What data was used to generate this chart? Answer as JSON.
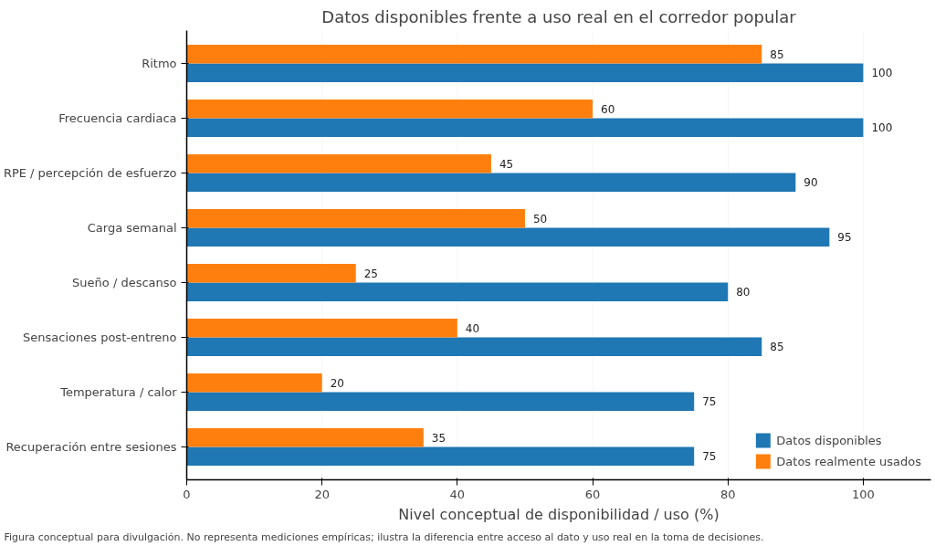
{
  "chart_data": {
    "type": "bar",
    "orientation": "horizontal",
    "title": "Datos disponibles frente a uso real en el corredor popular",
    "xlabel": "Nivel conceptual de disponibilidad / uso (%)",
    "categories": [
      "Ritmo",
      "Frecuencia cardiaca",
      "RPE / percepción de esfuerzo",
      "Carga semanal",
      "Sueño / descanso",
      "Sensaciones post-entreno",
      "Temperatura / calor",
      "Recuperación entre sesiones"
    ],
    "series": [
      {
        "name": "Datos disponibles",
        "color": "#1f77b4",
        "values": [
          100,
          100,
          90,
          95,
          80,
          85,
          75,
          75
        ]
      },
      {
        "name": "Datos realmente usados",
        "color": "#ff7f0e",
        "values": [
          85,
          60,
          45,
          50,
          25,
          40,
          20,
          35
        ]
      }
    ],
    "xlim": [
      0,
      110
    ],
    "xticks": [
      0,
      20,
      40,
      60,
      80,
      100
    ],
    "grid": "x",
    "legend": "bottom right",
    "data_labels": true,
    "annotations": [
      "Figura conceptual para divulgación. No representa mediciones empíricas; ilustra la diferencia entre acceso al dato y uso real en la toma de decisiones."
    ]
  }
}
